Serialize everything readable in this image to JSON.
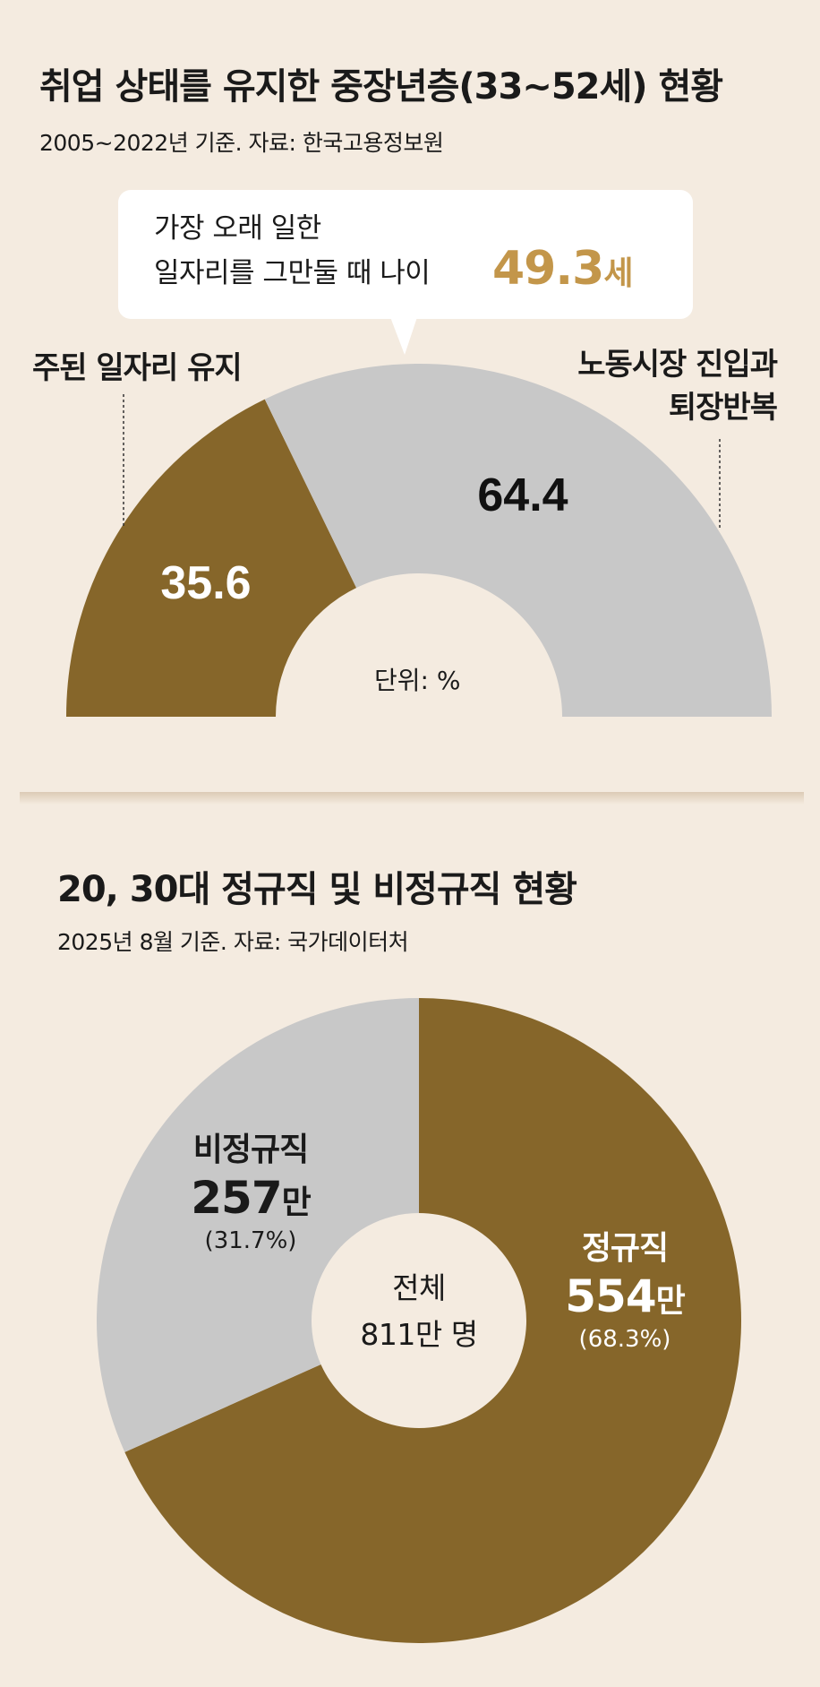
{
  "colors": {
    "primary": "#86662a",
    "secondary": "#c8c8c8",
    "accent": "#c3964a",
    "background": "#f4ebe0"
  },
  "chart1": {
    "title": "취업 상태를 유지한 중장년층(33~52세) 현황",
    "subtitle": "2005~2022년 기준. 자료: 한국고용정보원",
    "callout_line1": "가장 오래 일한",
    "callout_line2": "일자리를 그만둘 때 나이",
    "callout_value": "49.3",
    "callout_unit": "세",
    "unit_label": "단위: %",
    "legend_left": "주된 일자리 유지",
    "legend_right_line1": "노동시장 진입과",
    "legend_right_line2": "퇴장반복"
  },
  "chart2": {
    "title": "20, 30대 정규직 및 비정규직 현황",
    "subtitle": "2025년 8월 기준. 자료: 국가데이터처",
    "center_line1": "전체",
    "center_line2": "811만 명",
    "unit": "만"
  },
  "chart_data": [
    {
      "type": "pie",
      "variant": "semi-donut",
      "unit": "%",
      "series": [
        {
          "name": "주된 일자리 유지",
          "value": 35.6,
          "label": "35.6",
          "color": "#86662a"
        },
        {
          "name": "노동시장 진입과 퇴장반복",
          "value": 64.4,
          "label": "64.4",
          "color": "#c8c8c8"
        }
      ]
    },
    {
      "type": "pie",
      "variant": "donut",
      "total": 811,
      "series": [
        {
          "name": "정규직",
          "value": 554,
          "value_label": "554",
          "percent": "(68.3%)",
          "color": "#86662a"
        },
        {
          "name": "비정규직",
          "value": 257,
          "value_label": "257",
          "percent": "(31.7%)",
          "color": "#c8c8c8"
        }
      ]
    }
  ]
}
